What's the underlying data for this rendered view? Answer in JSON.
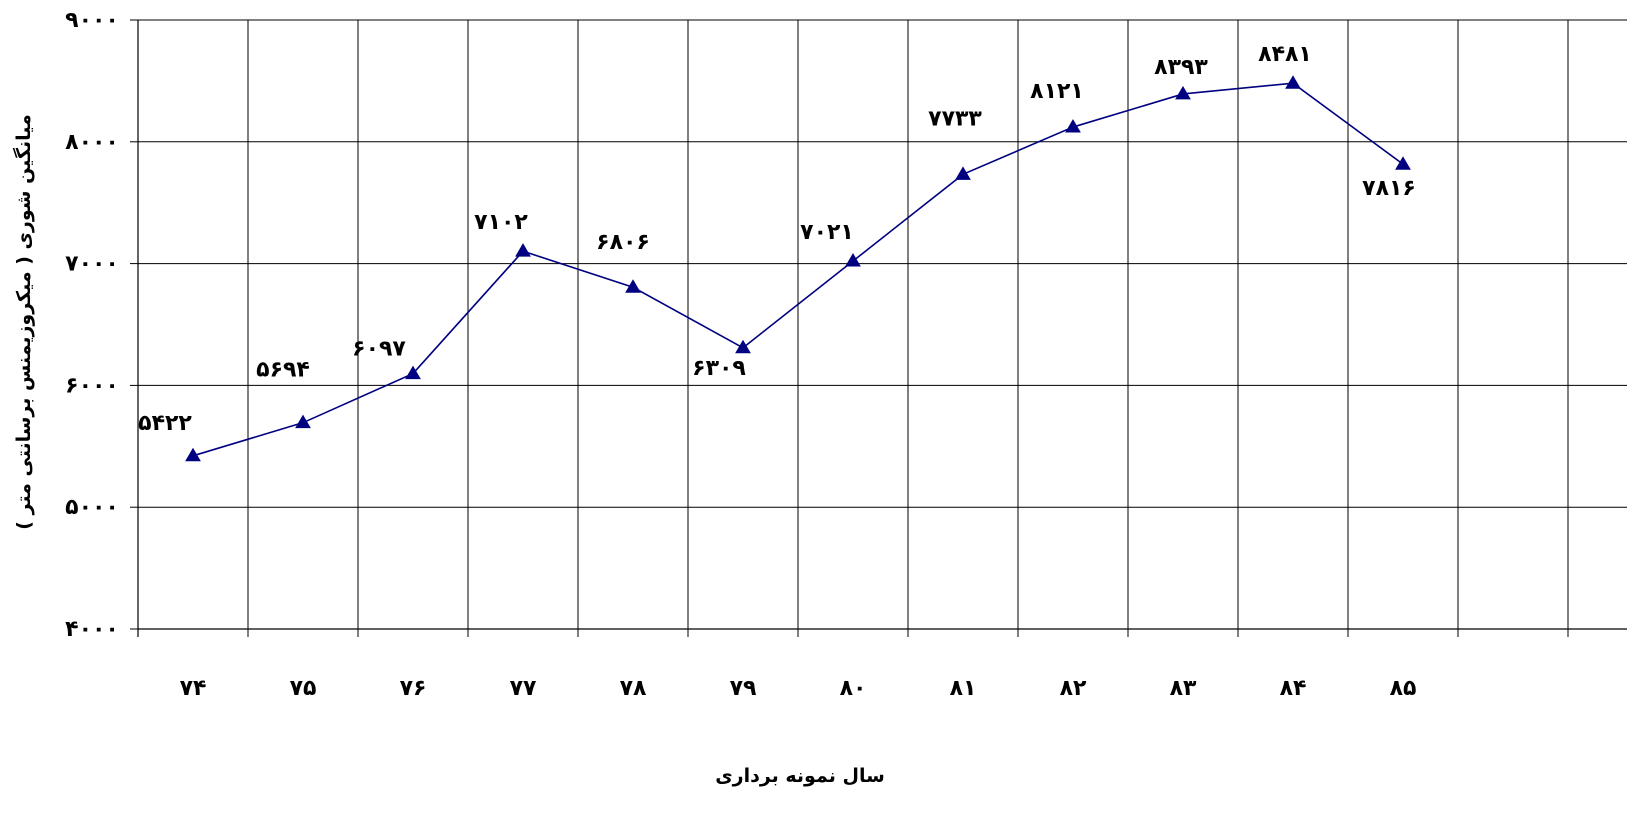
{
  "chart_data": {
    "type": "line",
    "xlabel": "سال نمونه برداری",
    "ylabel": "میانگین شوری ( میکروزیمنس برسانتی متر )",
    "ylim": [
      4000,
      9000
    ],
    "yticks": [
      4000,
      5000,
      6000,
      7000,
      8000,
      9000
    ],
    "ytick_labels": [
      "۴۰۰۰",
      "۵۰۰۰",
      "۶۰۰۰",
      "۷۰۰۰",
      "۸۰۰۰",
      "۹۰۰۰"
    ],
    "categories": [
      "۷۴",
      "۷۵",
      "۷۶",
      "۷۷",
      "۷۸",
      "۷۹",
      "۸۰",
      "۸۱",
      "۸۲",
      "۸۳",
      "۸۴",
      "۸۵"
    ],
    "series": [
      {
        "values": [
          5422,
          5694,
          6097,
          7102,
          6806,
          6309,
          7021,
          7733,
          8121,
          8393,
          8481,
          7816
        ],
        "labels": [
          "۵۴۲۲",
          "۵۶۹۴",
          "۶۰۹۷",
          "۷۱۰۲",
          "۶۸۰۶",
          "۶۳۰۹",
          "۷۰۲۱",
          "۷۷۳۳",
          "۸۱۲۱",
          "۸۳۹۳",
          "۸۴۸۱",
          "۷۸۱۶"
        ],
        "color": "#000080",
        "marker": "triangle"
      }
    ],
    "grid": true,
    "legend": "none"
  }
}
